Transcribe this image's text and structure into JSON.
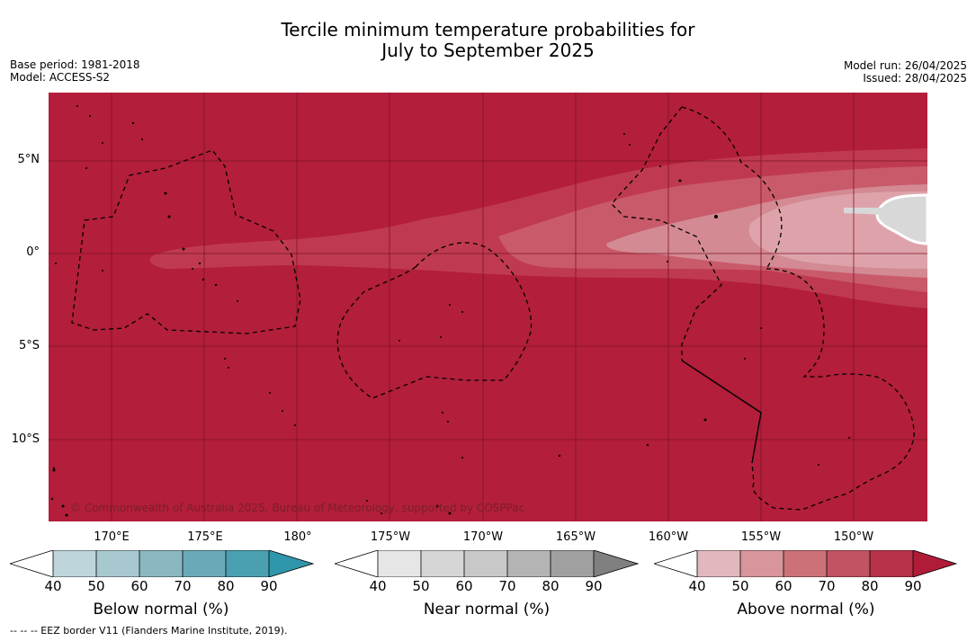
{
  "title": {
    "line1": "Tercile minimum temperature probabilities for",
    "line2": "July to September 2025"
  },
  "meta_left": {
    "base_period": "Base period: 1981-2018",
    "model": "Model: ACCESS-S2"
  },
  "meta_right": {
    "model_run": "Model run: 26/04/2025",
    "issued": "Issued: 28/04/2025"
  },
  "map": {
    "lat_labels": [
      "5°N",
      "0°",
      "5°S",
      "10°S"
    ],
    "lon_labels": [
      "170°E",
      "175°E",
      "180°",
      "175°W",
      "170°W",
      "165°W",
      "160°W",
      "155°W",
      "150°W"
    ],
    "copyright": "© Commonwealth of Australia 2025, Bureau of Meteorology, supported by COSPPac",
    "colors": {
      "above_90": "#b31e3a",
      "above_80": "#bf3a50",
      "above_70": "#c95a6a",
      "above_60": "#d38a93",
      "near_normal": "#d8d8d8"
    }
  },
  "colorbars": [
    {
      "label": "Below normal (%)",
      "ticks": [
        "40",
        "50",
        "60",
        "70",
        "80",
        "90"
      ],
      "colors": [
        "#ffffff",
        "#bed5dc",
        "#a8c8cf",
        "#8bb7c1",
        "#6aaab8",
        "#4aa0b0",
        "#2f96ab"
      ]
    },
    {
      "label": "Near normal (%)",
      "ticks": [
        "40",
        "50",
        "60",
        "70",
        "80",
        "90"
      ],
      "colors": [
        "#ffffff",
        "#e6e6e6",
        "#d6d6d6",
        "#c8c8c8",
        "#b4b4b4",
        "#a0a0a0",
        "#808080"
      ]
    },
    {
      "label": "Above normal (%)",
      "ticks": [
        "40",
        "50",
        "60",
        "70",
        "80",
        "90"
      ],
      "colors": [
        "#ffffff",
        "#e0b8bd",
        "#d8959c",
        "#cc7178",
        "#c25362",
        "#b8334a",
        "#b01c38"
      ]
    }
  ],
  "footnote": "--  --  -- EEZ border V11 (Flanders Marine Institute, 2019)."
}
